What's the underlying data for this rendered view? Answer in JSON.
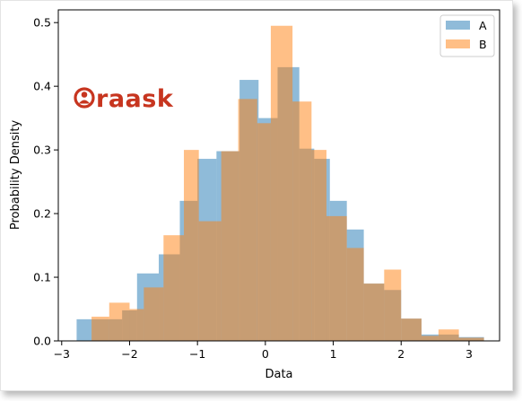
{
  "chart_data": {
    "type": "histogram",
    "xlabel": "Data",
    "ylabel": "Probability Density",
    "xlim": [
      -3.05,
      3.45
    ],
    "ylim": [
      0,
      0.52
    ],
    "xticks": [
      -3,
      -2,
      -1,
      0,
      1,
      2,
      3
    ],
    "yticks": [
      0.0,
      0.1,
      0.2,
      0.3,
      0.4,
      0.5
    ],
    "legend_position": "top-right",
    "series": [
      {
        "name": "A",
        "color": "#1f77b4",
        "opacity": 0.5,
        "bins": [
          [
            -2.78,
            -2.56,
            0.034
          ],
          [
            -2.56,
            -2.33,
            0.034
          ],
          [
            -2.33,
            -2.11,
            0.034
          ],
          [
            -2.11,
            -1.89,
            0.048
          ],
          [
            -1.89,
            -1.57,
            0.106
          ],
          [
            -1.57,
            -1.26,
            0.136
          ],
          [
            -1.26,
            -1.0,
            0.22
          ],
          [
            -1.0,
            -0.72,
            0.286
          ],
          [
            -0.72,
            -0.38,
            0.298
          ],
          [
            -0.38,
            -0.1,
            0.41
          ],
          [
            -0.1,
            0.18,
            0.35
          ],
          [
            0.18,
            0.5,
            0.43
          ],
          [
            0.5,
            0.72,
            0.302
          ],
          [
            0.72,
            0.95,
            0.286
          ],
          [
            0.95,
            1.2,
            0.22
          ],
          [
            1.2,
            1.45,
            0.175
          ],
          [
            1.45,
            1.75,
            0.09
          ],
          [
            1.75,
            2.0,
            0.08
          ],
          [
            2.0,
            2.3,
            0.035
          ],
          [
            2.3,
            2.55,
            0.01
          ],
          [
            2.55,
            2.85,
            0.01
          ],
          [
            2.85,
            3.22,
            0.006
          ]
        ]
      },
      {
        "name": "B",
        "color": "#ff7f0e",
        "opacity": 0.5,
        "bins": [
          [
            -2.56,
            -2.3,
            0.038
          ],
          [
            -2.3,
            -2.0,
            0.06
          ],
          [
            -2.0,
            -1.79,
            0.05
          ],
          [
            -1.79,
            -1.5,
            0.084
          ],
          [
            -1.5,
            -1.2,
            0.166
          ],
          [
            -1.2,
            -0.98,
            0.3
          ],
          [
            -0.98,
            -0.65,
            0.188
          ],
          [
            -0.65,
            -0.4,
            0.298
          ],
          [
            -0.4,
            -0.12,
            0.38
          ],
          [
            -0.12,
            0.08,
            0.342
          ],
          [
            0.08,
            0.4,
            0.495
          ],
          [
            0.4,
            0.68,
            0.376
          ],
          [
            0.68,
            0.9,
            0.3
          ],
          [
            0.9,
            1.2,
            0.196
          ],
          [
            1.2,
            1.45,
            0.146
          ],
          [
            1.45,
            1.75,
            0.09
          ],
          [
            1.75,
            2.0,
            0.112
          ],
          [
            2.0,
            2.3,
            0.035
          ],
          [
            2.3,
            2.55,
            0.008
          ],
          [
            2.55,
            2.85,
            0.018
          ],
          [
            2.85,
            3.22,
            0.005
          ]
        ]
      }
    ]
  },
  "watermark": {
    "text": "raask",
    "color": "#c7351f",
    "icon": "user-circle-icon"
  }
}
